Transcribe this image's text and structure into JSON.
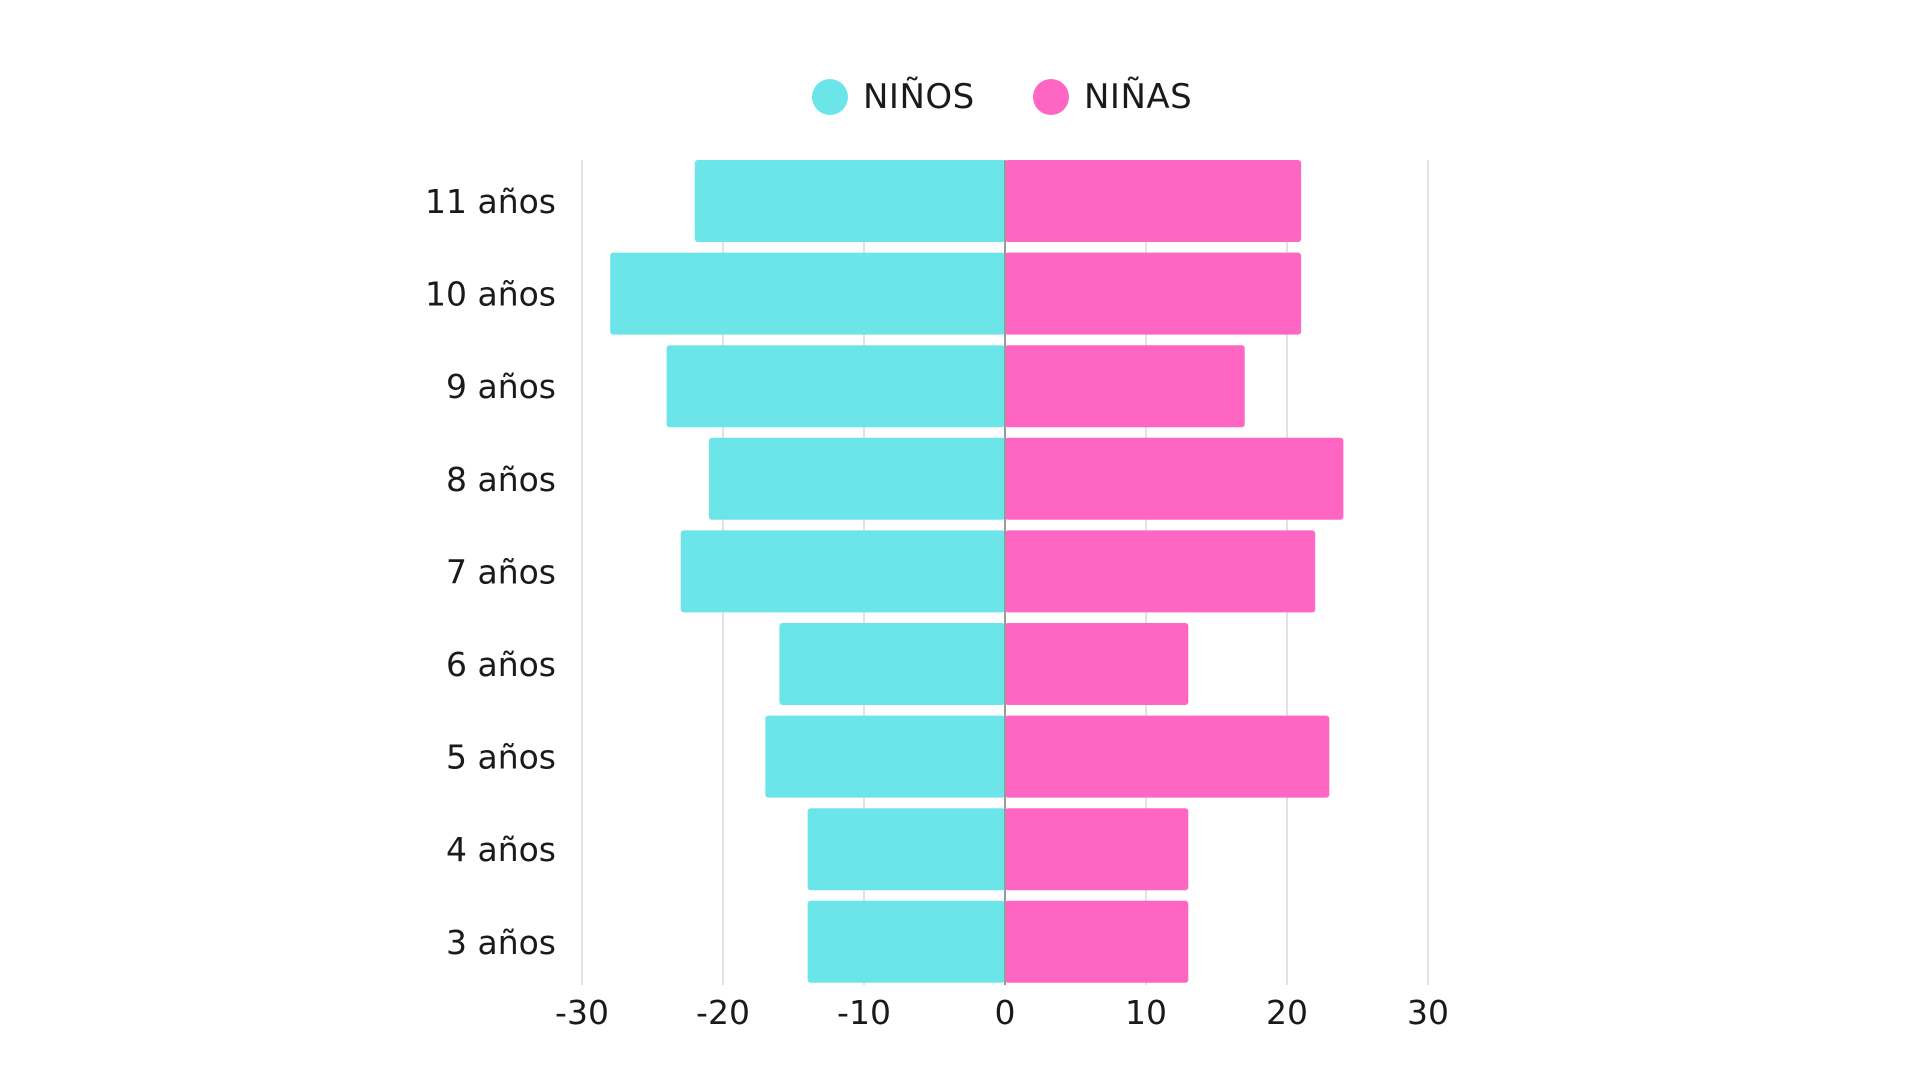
{
  "chart_data": {
    "type": "bar",
    "orientation": "horizontal",
    "layout": "population-pyramid",
    "categories": [
      "11 años",
      "10 años",
      "9 años",
      "8 años",
      "7 años",
      "6 años",
      "5 años",
      "4 años",
      "3 años"
    ],
    "series": [
      {
        "name": "NIÑOS",
        "color": "#6ce5e8",
        "values": [
          -22,
          -28,
          -24,
          -21,
          -23,
          -16,
          -17,
          -14,
          -14
        ]
      },
      {
        "name": "NIÑAS",
        "color": "#ff66c4",
        "values": [
          21,
          21,
          17,
          24,
          22,
          13,
          23,
          13,
          13
        ]
      }
    ],
    "xlim": [
      -30,
      30
    ],
    "xticks": [
      -30,
      -20,
      -10,
      0,
      10,
      20,
      30
    ],
    "xtick_labels": [
      "-30",
      "-20",
      "-10",
      "0",
      "10",
      "20",
      "30"
    ],
    "grid": true,
    "legend_position": "top-center",
    "title": "",
    "xlabel": "",
    "ylabel": ""
  }
}
